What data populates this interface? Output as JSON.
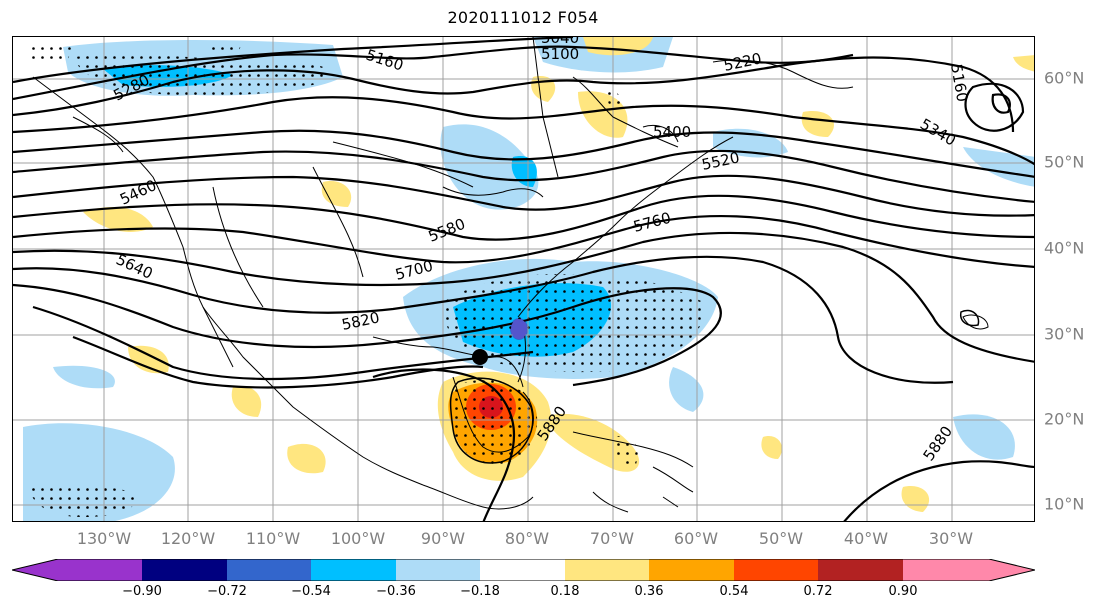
{
  "title": "2020111012 F054",
  "longitude_labels": [
    "130°W",
    "120°W",
    "110°W",
    "100°W",
    "90°W",
    "80°W",
    "70°W",
    "60°W",
    "50°W",
    "40°W",
    "30°W"
  ],
  "latitude_labels": [
    "60°N",
    "50°N",
    "40°N",
    "30°N",
    "20°N",
    "10°N"
  ],
  "contour_labels": [
    "5160",
    "5100",
    "5040",
    "5220",
    "5160",
    "5280",
    "5340",
    "5400",
    "5520",
    "5460",
    "5580",
    "5760",
    "5640",
    "5700",
    "5820",
    "5880",
    "5880"
  ],
  "colorbar": {
    "tick_labels": [
      "−0.90",
      "−0.72",
      "−0.54",
      "−0.36",
      "−0.18",
      "0.18",
      "0.36",
      "0.54",
      "0.72",
      "0.90"
    ],
    "colors": [
      "#9933cc",
      "#000080",
      "#3366cc",
      "#00bfff",
      "#aedcf7",
      "#ffffff",
      "#ffe680",
      "#ffa500",
      "#ff4500",
      "#b22222",
      "#ff88aa"
    ]
  },
  "shading_colors": {
    "light_blue": "#aedcf7",
    "mid_blue": "#00bfff",
    "dark_blue": "#3366cc",
    "light_yellow": "#ffe680",
    "orange": "#ffa500",
    "red_orange": "#ff4500",
    "red": "#e8241c"
  }
}
